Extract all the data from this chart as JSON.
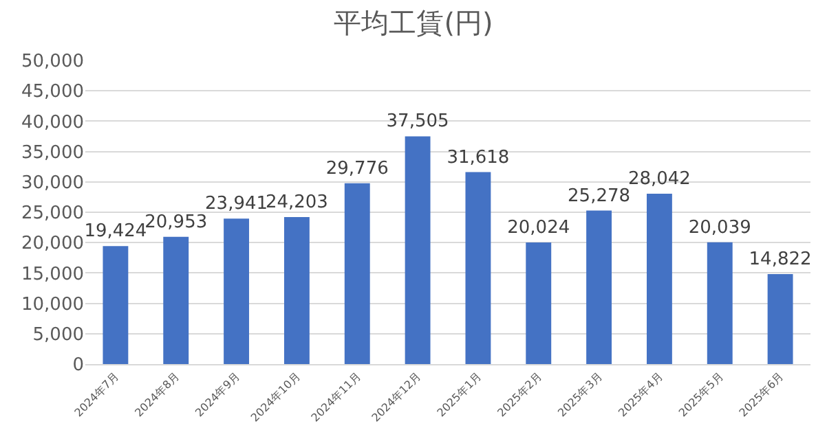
{
  "chart_data": {
    "type": "bar",
    "title": "平均工賃(円)",
    "categories": [
      "2024年7月",
      "2024年8月",
      "2024年9月",
      "2024年10月",
      "2024年11月",
      "2024年12月",
      "2025年1月",
      "2025年2月",
      "2025年3月",
      "2025年4月",
      "2025年5月",
      "2025年6月"
    ],
    "values": [
      19424,
      20953,
      23941,
      24203,
      29776,
      37505,
      31618,
      20024,
      25278,
      28042,
      20039,
      14822
    ],
    "color": "#4472c4",
    "ylim": [
      0,
      50000
    ],
    "yticks": [
      {
        "value": 0,
        "label": "0"
      },
      {
        "value": 5000,
        "label": "5,000"
      },
      {
        "value": 10000,
        "label": "10,000"
      },
      {
        "value": 15000,
        "label": "15,000"
      },
      {
        "value": 20000,
        "label": "20,000"
      },
      {
        "value": 25000,
        "label": "25,000"
      },
      {
        "value": 30000,
        "label": "30,000"
      },
      {
        "value": 35000,
        "label": "35,000"
      },
      {
        "value": 40000,
        "label": "40,000"
      },
      {
        "value": 45000,
        "label": "45,000"
      },
      {
        "value": 50000,
        "label": "50,000"
      }
    ],
    "value_labels": [
      "19,424",
      "20,953",
      "23,941",
      "24,203",
      "29,776",
      "37,505",
      "31,618",
      "20,024",
      "25,278",
      "28,042",
      "20,039",
      "14,822"
    ],
    "grid": "y"
  }
}
